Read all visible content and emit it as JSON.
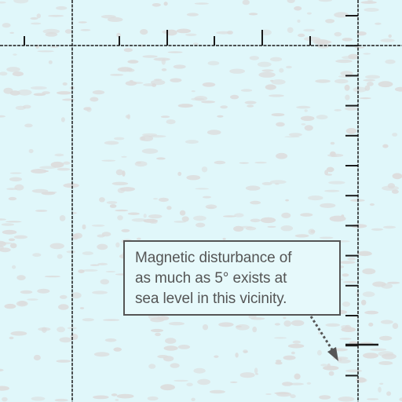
{
  "map": {
    "water_color": "#e0f7fa",
    "speckle_color": "#dcdcdc",
    "grid_color": "#1a1a1a",
    "note_color": "#555555"
  },
  "annotation": {
    "lines": [
      "Magnetic disturbance of",
      "as much as 5° exists at",
      "sea level in this vicinity."
    ]
  }
}
